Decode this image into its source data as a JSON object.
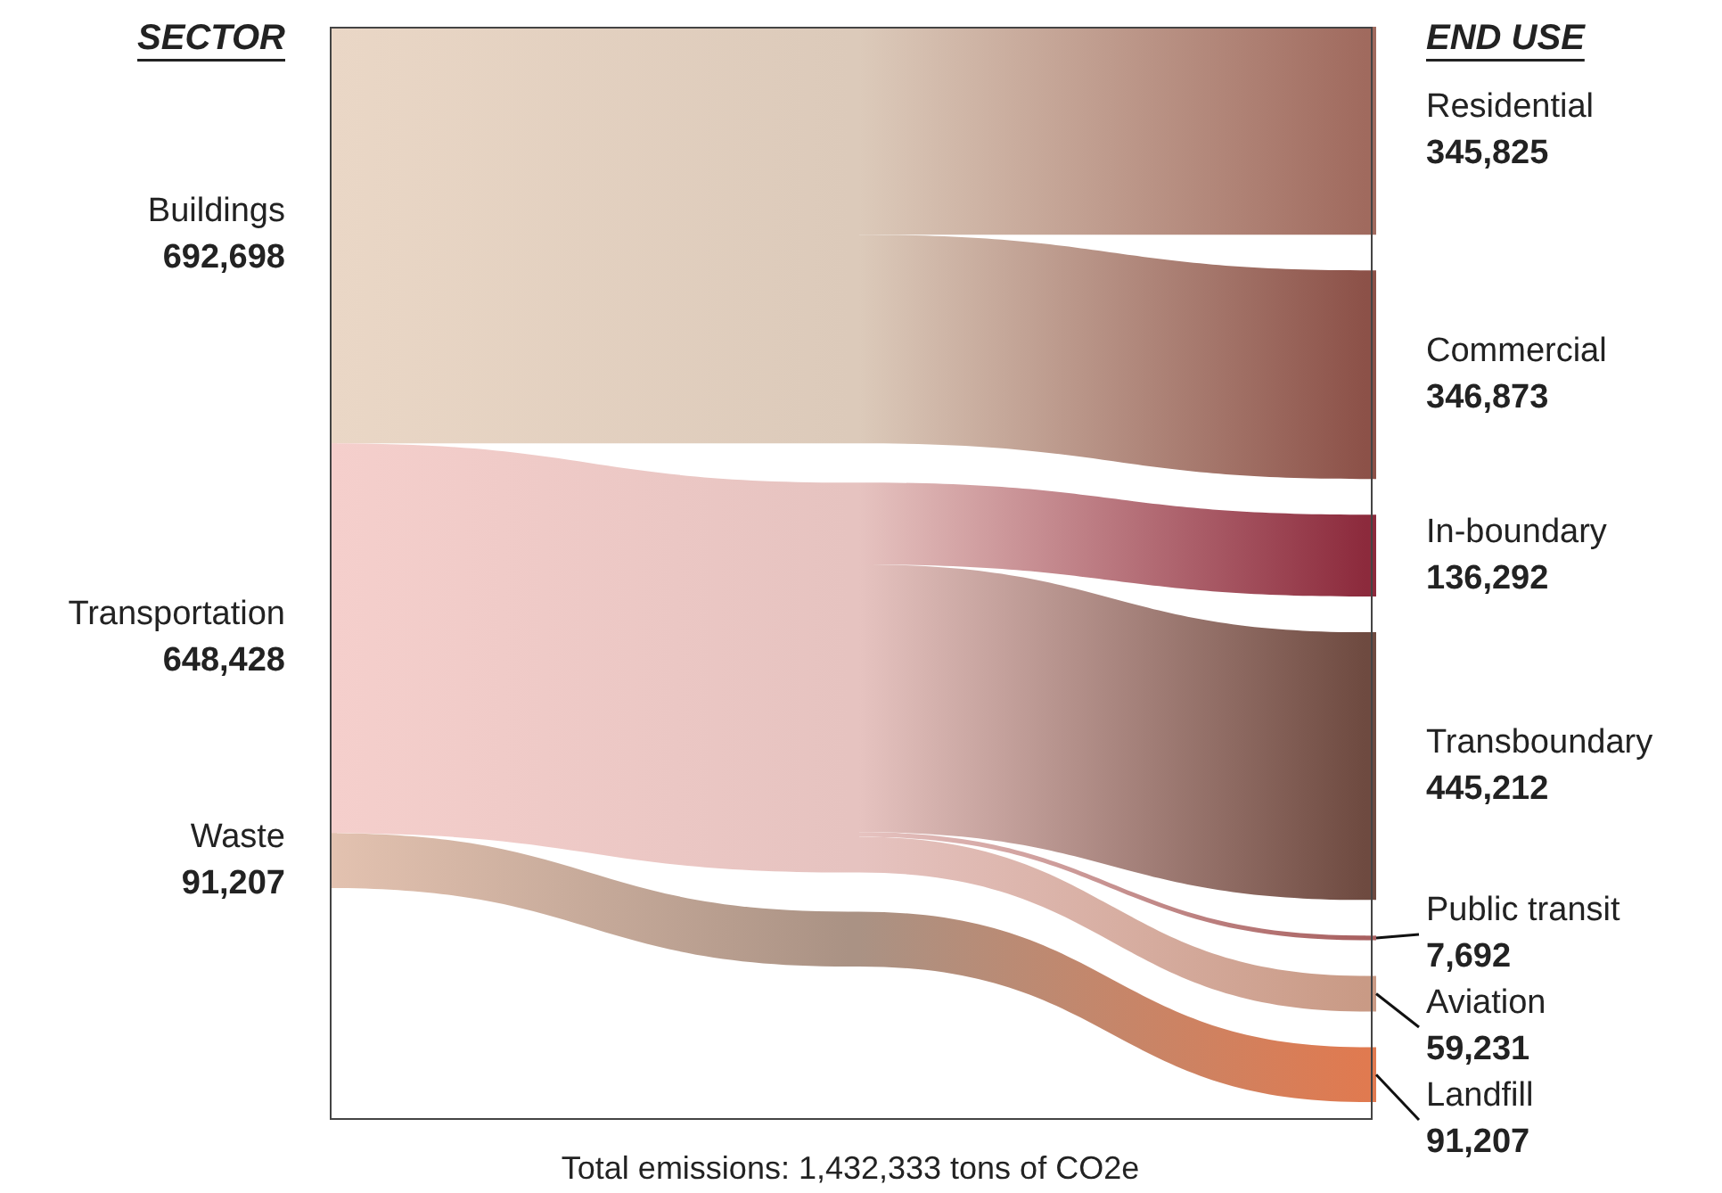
{
  "chart_data": {
    "type": "other",
    "categories": [
      "Buildings",
      "Transportation",
      "Waste",
      "Residential",
      "Commercial",
      "In-boundary",
      "Transboundary",
      "Public transit",
      "Aviation",
      "Landfill"
    ],
    "values": [
      692698,
      648428,
      91207,
      345825,
      346873,
      136292,
      445212,
      7692,
      59231,
      91207
    ],
    "value_labels": [
      "692,698",
      "648,428",
      "91,207",
      "345,825",
      "346,873",
      "136,292",
      "445,212",
      "7,692",
      "59,231",
      "91,207"
    ],
    "colors": [
      "#ead7c6",
      "#f5cfcc",
      "#e3c2b0",
      "#a06a5e",
      "#8c5148",
      "#8c2a3c",
      "#6e4a40",
      "#a86060",
      "#c99a85",
      "#e07a50"
    ],
    "annotations": [
      "SECTOR",
      "END USE",
      "Total emissions: 1,432,333 tons of CO2e"
    ]
  }
}
